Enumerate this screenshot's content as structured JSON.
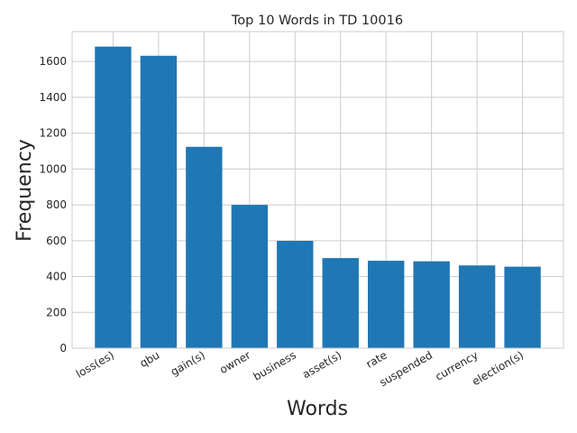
{
  "chart_data": {
    "type": "bar",
    "title": "Top 10 Words in TD 10016",
    "xlabel": "Words",
    "ylabel": "Frequency",
    "categories": [
      "loss(es)",
      "qbu",
      "gain(s)",
      "owner",
      "business",
      "asset(s)",
      "rate",
      "suspended",
      "currency",
      "election(s)"
    ],
    "values": [
      1683,
      1632,
      1124,
      800,
      599,
      503,
      488,
      485,
      462,
      455
    ],
    "ylim": [
      0,
      1767
    ],
    "yticks": [
      0,
      200,
      400,
      600,
      800,
      1000,
      1200,
      1400,
      1600
    ],
    "grid": true,
    "bar_color": "#1f77b4"
  }
}
